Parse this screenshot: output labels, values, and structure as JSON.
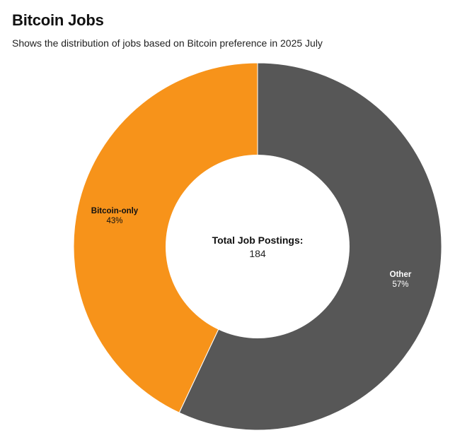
{
  "title": "Bitcoin Jobs",
  "subtitle": "Shows the distribution of jobs based on Bitcoin preference in 2025 July",
  "center": {
    "label": "Total Job Postings:",
    "value": "184"
  },
  "colors": {
    "bitcoin_only": "#f7931a",
    "other": "#575757",
    "hole": "#ffffff"
  },
  "chart_data": {
    "type": "pie",
    "variant": "donut",
    "title": "Bitcoin Jobs",
    "subtitle": "Shows the distribution of jobs based on Bitcoin preference in 2025 July",
    "total": 184,
    "slices": [
      {
        "label": "Bitcoin-only",
        "value": 43,
        "display": "43%",
        "color": "#f7931a",
        "text_color": "#111111"
      },
      {
        "label": "Other",
        "value": 57,
        "display": "57%",
        "color": "#575757",
        "text_color": "#ffffff"
      }
    ],
    "start": "top",
    "direction": "counterclockwise",
    "legend": "none"
  }
}
